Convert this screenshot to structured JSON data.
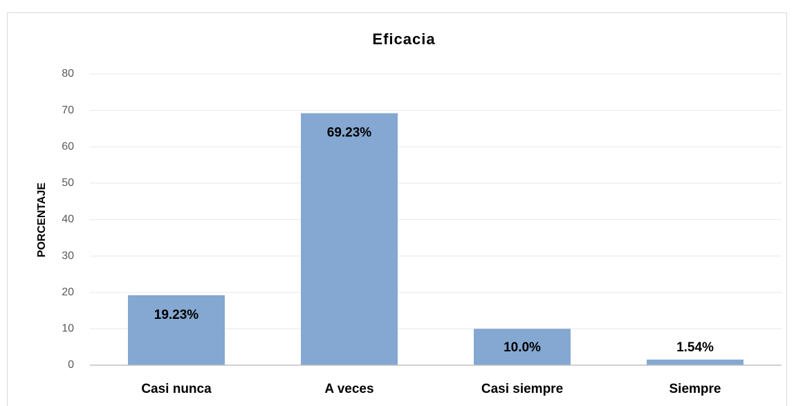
{
  "chart_data": {
    "type": "bar",
    "title": "Eficacia",
    "y_label": "PORCENTAJE",
    "categories": [
      "Casi nunca",
      "A veces",
      "Casi siempre",
      "Siempre"
    ],
    "values": [
      19.23,
      69.23,
      10,
      1.54
    ],
    "value_labels": [
      "19.23%",
      "69.23%",
      "10.0%",
      "1.54%"
    ],
    "color": "#84a8d1",
    "ylim": [
      0,
      80
    ],
    "yticks": [
      0,
      10,
      20,
      30,
      40,
      50,
      60,
      70,
      80
    ],
    "grid": true
  }
}
